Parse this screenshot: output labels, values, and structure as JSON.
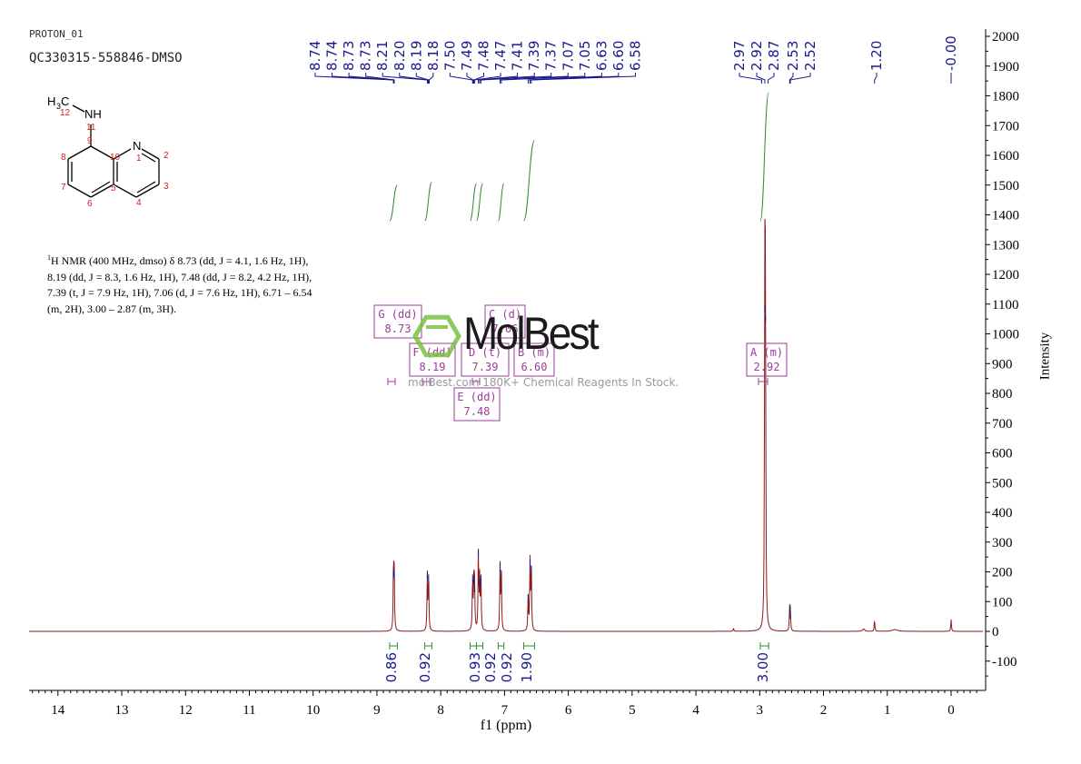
{
  "header": {
    "experiment": "PROTON_01",
    "sample_id": "QC330315-558846-DMSO"
  },
  "structure": {
    "substituent_label": "NH",
    "methyl_label": "H3C",
    "ring_atom": "N",
    "atom_numbers": [
      "1",
      "2",
      "3",
      "4",
      "5",
      "6",
      "7",
      "8",
      "9",
      "10",
      "11",
      "12"
    ]
  },
  "nmr_description": {
    "line1": "H NMR (400 MHz, dmso) δ 8.73 (dd, J = 4.1, 1.6 Hz, 1H),",
    "sup": "1",
    "line2": "8.19 (dd, J = 8.3, 1.6 Hz, 1H), 7.48 (dd, J = 8.2, 4.2 Hz, 1H),",
    "line3": "7.39 (t, J = 7.9 Hz, 1H), 7.06 (d, J = 7.6 Hz, 1H), 6.71 – 6.54",
    "line4": "(m, 2H), 3.00 – 2.87 (m, 3H)."
  },
  "watermark": {
    "brand": "MolBest",
    "tagline": "molBest.com 180K+ Chemical Reagents In Stock."
  },
  "colors": {
    "spectrum": "#8b1a1a",
    "peak_labels": "#1a1a8c",
    "integrals": "#2e8b2e",
    "multiplet_boxes": "#9b3b9b",
    "axis": "#000000",
    "logo": "#7ac143"
  },
  "chart_data": {
    "type": "line",
    "title": "",
    "xlabel": "f1 (ppm)",
    "ylabel": "Intensity",
    "xlim": [
      14.5,
      -0.5
    ],
    "ylim": [
      -200,
      2050
    ],
    "x_ticks": [
      14,
      13,
      12,
      11,
      10,
      9,
      8,
      7,
      6,
      5,
      4,
      3,
      2,
      1,
      0
    ],
    "y_ticks": [
      -100,
      0,
      100,
      200,
      300,
      400,
      500,
      600,
      700,
      800,
      900,
      1000,
      1100,
      1200,
      1300,
      1400,
      1500,
      1600,
      1700,
      1800,
      1900,
      2000
    ],
    "peaks": [
      {
        "x": 8.74,
        "y": 205
      },
      {
        "x": 8.73,
        "y": 195
      },
      {
        "x": 8.21,
        "y": 195
      },
      {
        "x": 8.19,
        "y": 185
      },
      {
        "x": 7.5,
        "y": 185
      },
      {
        "x": 7.48,
        "y": 175
      },
      {
        "x": 7.47,
        "y": 150
      },
      {
        "x": 7.41,
        "y": 270
      },
      {
        "x": 7.39,
        "y": 170
      },
      {
        "x": 7.37,
        "y": 180
      },
      {
        "x": 7.07,
        "y": 220
      },
      {
        "x": 7.05,
        "y": 200
      },
      {
        "x": 6.63,
        "y": 120
      },
      {
        "x": 6.6,
        "y": 235
      },
      {
        "x": 6.58,
        "y": 215
      },
      {
        "x": 2.92,
        "y": 1090
      },
      {
        "x": 2.91,
        "y": 1060
      },
      {
        "x": 2.53,
        "y": 80
      },
      {
        "x": 2.52,
        "y": 60
      },
      {
        "x": 3.41,
        "y": 10
      },
      {
        "x": 1.2,
        "y": 40
      },
      {
        "x": 0.0,
        "y": 40
      }
    ],
    "peak_labels": [
      "8.74",
      "8.74",
      "8.73",
      "8.73",
      "8.21",
      "8.20",
      "8.19",
      "8.18",
      "7.50",
      "7.49",
      "7.48",
      "7.47",
      "7.41",
      "7.39",
      "7.37",
      "7.07",
      "7.05",
      "6.63",
      "6.60",
      "6.58",
      "2.97",
      "2.92",
      "2.87",
      "2.53",
      "2.52",
      "1.20",
      "-0.00"
    ],
    "peak_label_positions": [
      8.74,
      8.74,
      8.73,
      8.73,
      8.21,
      8.2,
      8.19,
      8.18,
      7.5,
      7.49,
      7.48,
      7.47,
      7.41,
      7.39,
      7.37,
      7.07,
      7.05,
      6.63,
      6.6,
      6.58,
      2.97,
      2.92,
      2.87,
      2.53,
      2.52,
      1.2,
      0.0
    ],
    "integrals": [
      {
        "from": 8.8,
        "to": 8.68,
        "value": "0.86",
        "base": 1380,
        "top": 1500
      },
      {
        "from": 8.25,
        "to": 8.14,
        "value": "0.92",
        "base": 1380,
        "top": 1510
      },
      {
        "from": 7.54,
        "to": 7.44,
        "value": "0.93",
        "base": 1380,
        "top": 1505
      },
      {
        "from": 7.44,
        "to": 7.34,
        "value": "0.92",
        "base": 1380,
        "top": 1505
      },
      {
        "from": 7.1,
        "to": 7.01,
        "value": "0.92",
        "base": 1380,
        "top": 1505
      },
      {
        "from": 6.7,
        "to": 6.53,
        "value": "1.90",
        "base": 1380,
        "top": 1650
      },
      {
        "from": 2.99,
        "to": 2.86,
        "value": "3.00",
        "base": 1380,
        "top": 1810
      }
    ],
    "multiplets": [
      {
        "id": "G (dd)",
        "shift": "8.73",
        "x": 8.73,
        "y": 1060
      },
      {
        "id": "F (dd)",
        "shift": "8.19",
        "x": 8.19,
        "y": 940
      },
      {
        "id": "E (dd)",
        "shift": "7.48",
        "x": 7.48,
        "y": 790
      },
      {
        "id": "D (t)",
        "shift": "7.39",
        "x": 7.34,
        "y": 940
      },
      {
        "id": "C (d)",
        "shift": "7.06",
        "x": 7.06,
        "y": 1060
      },
      {
        "id": "B (m)",
        "shift": "6.60",
        "x": 6.6,
        "y": 940
      },
      {
        "id": "A (m)",
        "shift": "2.92",
        "x": 2.92,
        "y": 940
      }
    ],
    "grid": false
  }
}
